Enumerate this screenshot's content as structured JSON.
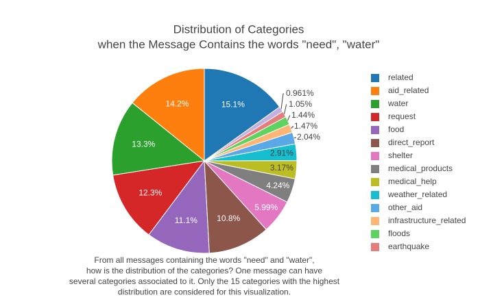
{
  "chart_data": {
    "type": "pie",
    "title": "Distribution of Categories",
    "subtitle": "when the Message Contains the words \"need\", \"water\"",
    "annotation": [
      "From all messages containing the words \"need\" and \"water\",",
      "how is the distribution of the categories? One message can have",
      "several categories associated to it. Only the 15 categories with the highest",
      "distribution are considered for this visualization."
    ],
    "categories": [
      "related",
      "aid_related",
      "water",
      "request",
      "food",
      "direct_report",
      "shelter",
      "medical_products",
      "medical_help",
      "weather_related",
      "other_aid",
      "infrastructure_related",
      "floods",
      "earthquake",
      null
    ],
    "values": [
      15.1,
      14.2,
      13.3,
      12.3,
      11.1,
      10.8,
      5.99,
      4.24,
      3.17,
      2.91,
      2.04,
      1.47,
      1.44,
      1.05,
      0.961
    ],
    "value_labels": [
      "15.1%",
      "14.2%",
      "13.3%",
      "12.3%",
      "11.1%",
      "10.8%",
      "5.99%",
      "4.24%",
      "3.17%",
      "2.91%",
      "2.04%",
      "1.47%",
      "1.44%",
      "1.05%",
      "0.961%"
    ],
    "colors": [
      "#1f77b4",
      "#ff7f0e",
      "#2ca02c",
      "#d62728",
      "#9467bd",
      "#8c564b",
      "#e377c2",
      "#7f7f7f",
      "#bcbd22",
      "#17becf",
      "#5aa9e6",
      "#ffb574",
      "#5fd35f",
      "#e77c7c",
      "#c5b0e0"
    ],
    "legend": "right"
  }
}
